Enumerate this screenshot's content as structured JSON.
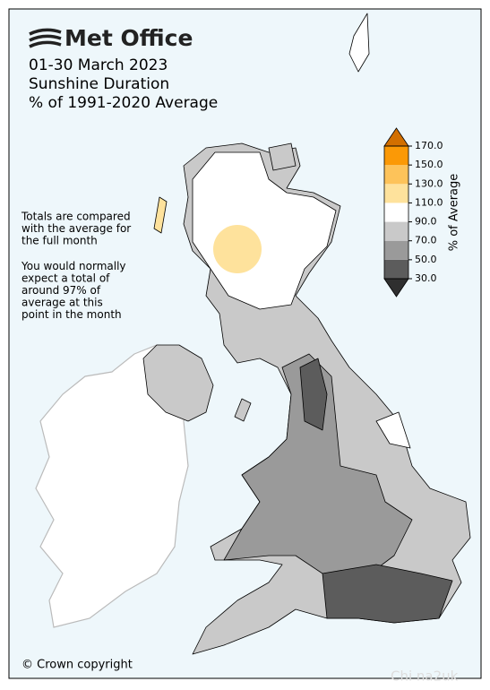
{
  "header": {
    "logo": "Met Office",
    "lines": [
      "01-30 March 2023",
      "Sunshine Duration",
      "% of 1991-2020 Average"
    ]
  },
  "notes": [
    [
      "Totals are compared",
      "with the average for",
      "the full month"
    ],
    [
      "You would normally",
      "expect a total of",
      "around 97% of",
      "average at this",
      "point in the month"
    ]
  ],
  "legend": {
    "label": "% of Average",
    "ticks": [
      {
        "value": 30,
        "label": "30.0"
      },
      {
        "value": 50,
        "label": "50.0"
      },
      {
        "value": 70,
        "label": "70.0"
      },
      {
        "value": 90,
        "label": "90.0"
      },
      {
        "value": 110,
        "label": "110.0"
      },
      {
        "value": 130,
        "label": "130.0"
      },
      {
        "value": 150,
        "label": "150.0"
      },
      {
        "value": 170,
        "label": "170.0"
      }
    ],
    "colors": [
      "#5c5c5c",
      "#9a9a9a",
      "#c9c9c9",
      "#ffffff",
      "#fee29c",
      "#fdc35a",
      "#fb9906"
    ],
    "under_color": "#2f2f2f",
    "over_color": "#d26f00"
  },
  "footer": {
    "copyright": "© Crown copyright",
    "watermark": "Chi na2uk"
  }
}
